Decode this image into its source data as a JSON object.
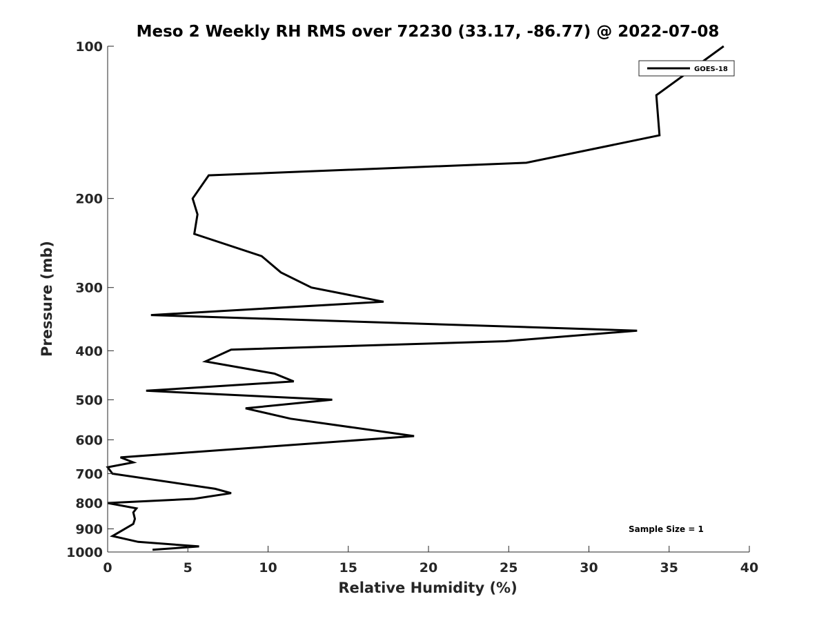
{
  "chart_data": {
    "type": "line",
    "title": "Meso 2 Weekly RH RMS over 72230 (33.17, -86.77) @ 2022-07-08",
    "xlabel": "Relative Humidity (%)",
    "ylabel": "Pressure (mb)",
    "xlim": [
      0,
      40
    ],
    "ylim": [
      100,
      1000
    ],
    "y_scale": "log",
    "y_reversed": true,
    "xticks": [
      0,
      5,
      10,
      15,
      20,
      25,
      30,
      35,
      40
    ],
    "xtick_labels": [
      "0",
      "5",
      "10",
      "15",
      "20",
      "25",
      "30",
      "35",
      "40"
    ],
    "yticks": [
      100,
      200,
      300,
      400,
      500,
      600,
      700,
      800,
      900,
      1000
    ],
    "ytick_labels": [
      "100",
      "200",
      "300",
      "400",
      "500",
      "600",
      "700",
      "800",
      "900",
      "1000"
    ],
    "grid": false,
    "legend_position": "top-right",
    "annotation": "Sample Size = 1",
    "series": [
      {
        "name": "GOES-18",
        "color": "#000000",
        "points": [
          [
            38.4,
            100
          ],
          [
            34.2,
            125
          ],
          [
            34.4,
            150
          ],
          [
            26.1,
            170
          ],
          [
            6.3,
            180
          ],
          [
            5.3,
            200
          ],
          [
            5.6,
            215
          ],
          [
            5.4,
            235
          ],
          [
            9.6,
            260
          ],
          [
            10.8,
            280
          ],
          [
            12.7,
            300
          ],
          [
            17.2,
            320
          ],
          [
            2.7,
            340
          ],
          [
            33.0,
            365
          ],
          [
            24.8,
            383
          ],
          [
            7.7,
            398
          ],
          [
            6.1,
            420
          ],
          [
            10.4,
            444
          ],
          [
            11.6,
            460
          ],
          [
            2.4,
            480
          ],
          [
            14.0,
            500
          ],
          [
            8.6,
            520
          ],
          [
            11.4,
            545
          ],
          [
            19.1,
            590
          ],
          [
            0.8,
            650
          ],
          [
            1.6,
            665
          ],
          [
            0.0,
            680
          ],
          [
            0.3,
            700
          ],
          [
            6.7,
            750
          ],
          [
            7.7,
            765
          ],
          [
            5.4,
            785
          ],
          [
            0.0,
            800
          ],
          [
            1.8,
            820
          ],
          [
            1.6,
            835
          ],
          [
            1.7,
            860
          ],
          [
            1.6,
            880
          ],
          [
            0.3,
            930
          ],
          [
            1.9,
            955
          ],
          [
            5.7,
            975
          ],
          [
            2.8,
            990
          ]
        ]
      }
    ]
  }
}
